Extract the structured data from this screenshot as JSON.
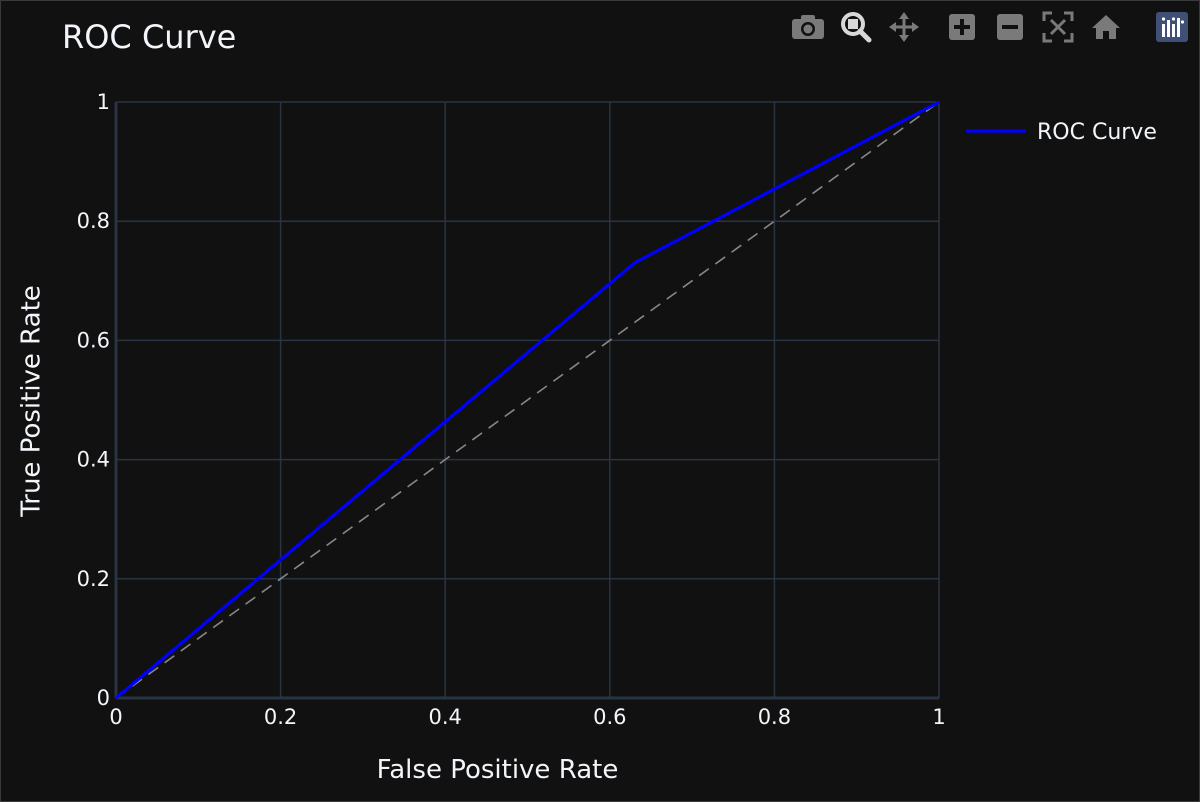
{
  "modebar": {
    "buttons": [
      {
        "name": "camera-icon"
      },
      {
        "name": "zoom-icon"
      },
      {
        "name": "pan-icon"
      },
      {
        "name": "zoom-in-icon"
      },
      {
        "name": "zoom-out-icon"
      },
      {
        "name": "autoscale-icon"
      },
      {
        "name": "home-icon"
      },
      {
        "name": "plotly-logo-icon"
      }
    ]
  },
  "chart_data": {
    "type": "line",
    "title": "ROC Curve",
    "xlabel": "False Positive Rate",
    "ylabel": "True Positive Rate",
    "xlim": [
      0,
      1
    ],
    "ylim": [
      0,
      1
    ],
    "xticks": [
      "0",
      "0.2",
      "0.4",
      "0.6",
      "0.8",
      "1"
    ],
    "yticks": [
      "0",
      "0.2",
      "0.4",
      "0.6",
      "0.8",
      "1"
    ],
    "grid": true,
    "legend_position": "top-right",
    "series": [
      {
        "name": "ROC Curve",
        "color": "#0000ff",
        "x": [
          0,
          0.63,
          1
        ],
        "y": [
          0,
          0.73,
          1
        ]
      },
      {
        "color": "#888888",
        "dash": true,
        "x": [
          0,
          1
        ],
        "y": [
          0,
          1
        ],
        "showlegend": false
      }
    ]
  }
}
